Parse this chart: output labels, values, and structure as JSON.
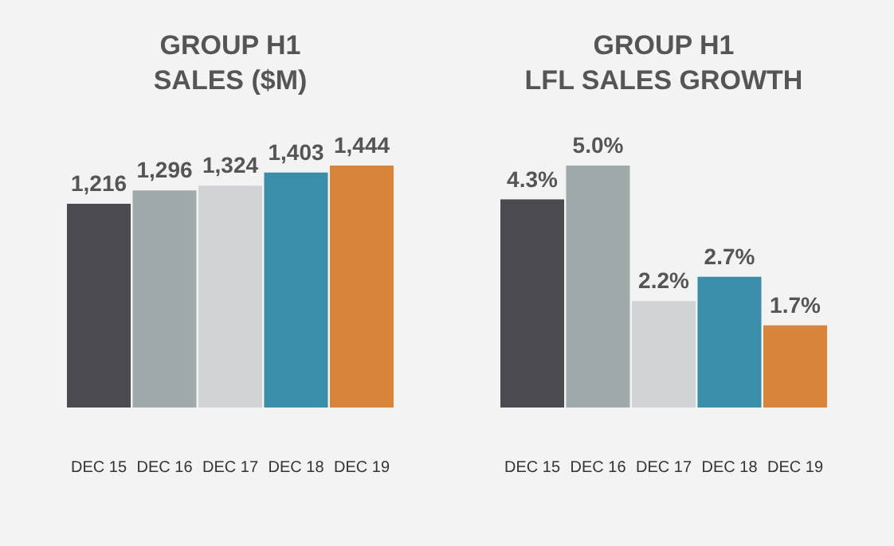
{
  "chart_data": [
    {
      "type": "bar",
      "title": "GROUP H1\nSALES ($M)",
      "categories": [
        "DEC 15",
        "DEC 16",
        "DEC 17",
        "DEC 18",
        "DEC 19"
      ],
      "values": [
        1216,
        1296,
        1324,
        1403,
        1444
      ],
      "colors": [
        "#4b4b4f",
        "#9fa9a9",
        "#d1d3d4",
        "#3a8ea7",
        "#d8843a"
      ],
      "value_labels": [
        "1,216",
        "1,296",
        "1,324",
        "1,403",
        "1,444"
      ]
    },
    {
      "type": "bar",
      "title": "GROUP H1\nLFL SALES GROWTH",
      "categories": [
        "DEC 15",
        "DEC 16",
        "DEC 17",
        "DEC 18",
        "DEC 19"
      ],
      "values": [
        4.3,
        5.0,
        2.2,
        2.7,
        1.7
      ],
      "colors": [
        "#4b4b4f",
        "#9fa9a9",
        "#d1d3d4",
        "#3a8ea7",
        "#d8843a"
      ],
      "value_labels": [
        "4.3%",
        "5.0%",
        "2.2%",
        "2.7%",
        "1.7%"
      ]
    }
  ]
}
